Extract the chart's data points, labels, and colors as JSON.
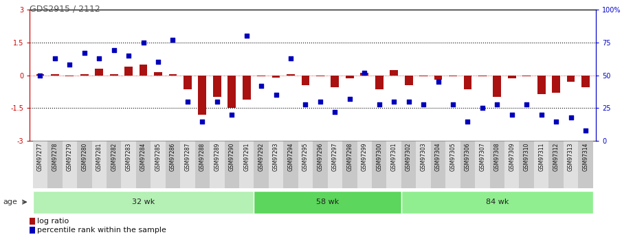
{
  "title": "GDS2915 / 2112",
  "samples": [
    "GSM97277",
    "GSM97278",
    "GSM97279",
    "GSM97280",
    "GSM97281",
    "GSM97282",
    "GSM97283",
    "GSM97284",
    "GSM97285",
    "GSM97286",
    "GSM97287",
    "GSM97288",
    "GSM97289",
    "GSM97290",
    "GSM97291",
    "GSM97292",
    "GSM97293",
    "GSM97294",
    "GSM97295",
    "GSM97296",
    "GSM97297",
    "GSM97298",
    "GSM97299",
    "GSM97300",
    "GSM97301",
    "GSM97302",
    "GSM97303",
    "GSM97304",
    "GSM97305",
    "GSM97306",
    "GSM97307",
    "GSM97308",
    "GSM97309",
    "GSM97310",
    "GSM97311",
    "GSM97312",
    "GSM97313",
    "GSM97314"
  ],
  "log_ratio": [
    0.05,
    0.05,
    -0.05,
    0.05,
    0.3,
    0.05,
    0.4,
    0.5,
    0.15,
    0.05,
    -0.65,
    -1.8,
    -1.0,
    -1.5,
    -1.1,
    -0.05,
    -0.1,
    0.05,
    -0.45,
    -0.05,
    -0.55,
    -0.15,
    0.1,
    -0.65,
    0.25,
    -0.45,
    -0.05,
    -0.2,
    -0.05,
    -0.65,
    -0.05,
    -1.0,
    -0.15,
    -0.05,
    -0.85,
    -0.8,
    -0.3,
    -0.55
  ],
  "percentile": [
    50,
    63,
    58,
    67,
    63,
    69,
    65,
    75,
    60,
    77,
    30,
    15,
    30,
    20,
    80,
    42,
    35,
    63,
    28,
    30,
    22,
    32,
    52,
    28,
    30,
    30,
    28,
    45,
    28,
    15,
    25,
    28,
    20,
    28,
    20,
    15,
    18,
    8
  ],
  "groups": [
    {
      "label": "32 wk",
      "start": 0,
      "end": 15
    },
    {
      "label": "58 wk",
      "start": 15,
      "end": 25
    },
    {
      "label": "84 wk",
      "start": 25,
      "end": 38
    }
  ],
  "group_colors": [
    "#b2f0b2",
    "#5cd65c",
    "#90EE90"
  ],
  "bar_color": "#aa1111",
  "dot_color": "#0000bb",
  "ylim": [
    -3,
    3
  ],
  "yticks_left": [
    -3,
    -1.5,
    0,
    1.5,
    3
  ],
  "yticks_right_vals": [
    0,
    25,
    50,
    75,
    100
  ],
  "yticks_right_labels": [
    "0",
    "25",
    "50",
    "75",
    "100%"
  ],
  "hlines": [
    1.5,
    -1.5
  ],
  "hline_color": "#000000",
  "bg_color": "#ffffff",
  "left_axis_color": "#cc0000",
  "right_axis_color": "#0000cc",
  "age_label": "age"
}
